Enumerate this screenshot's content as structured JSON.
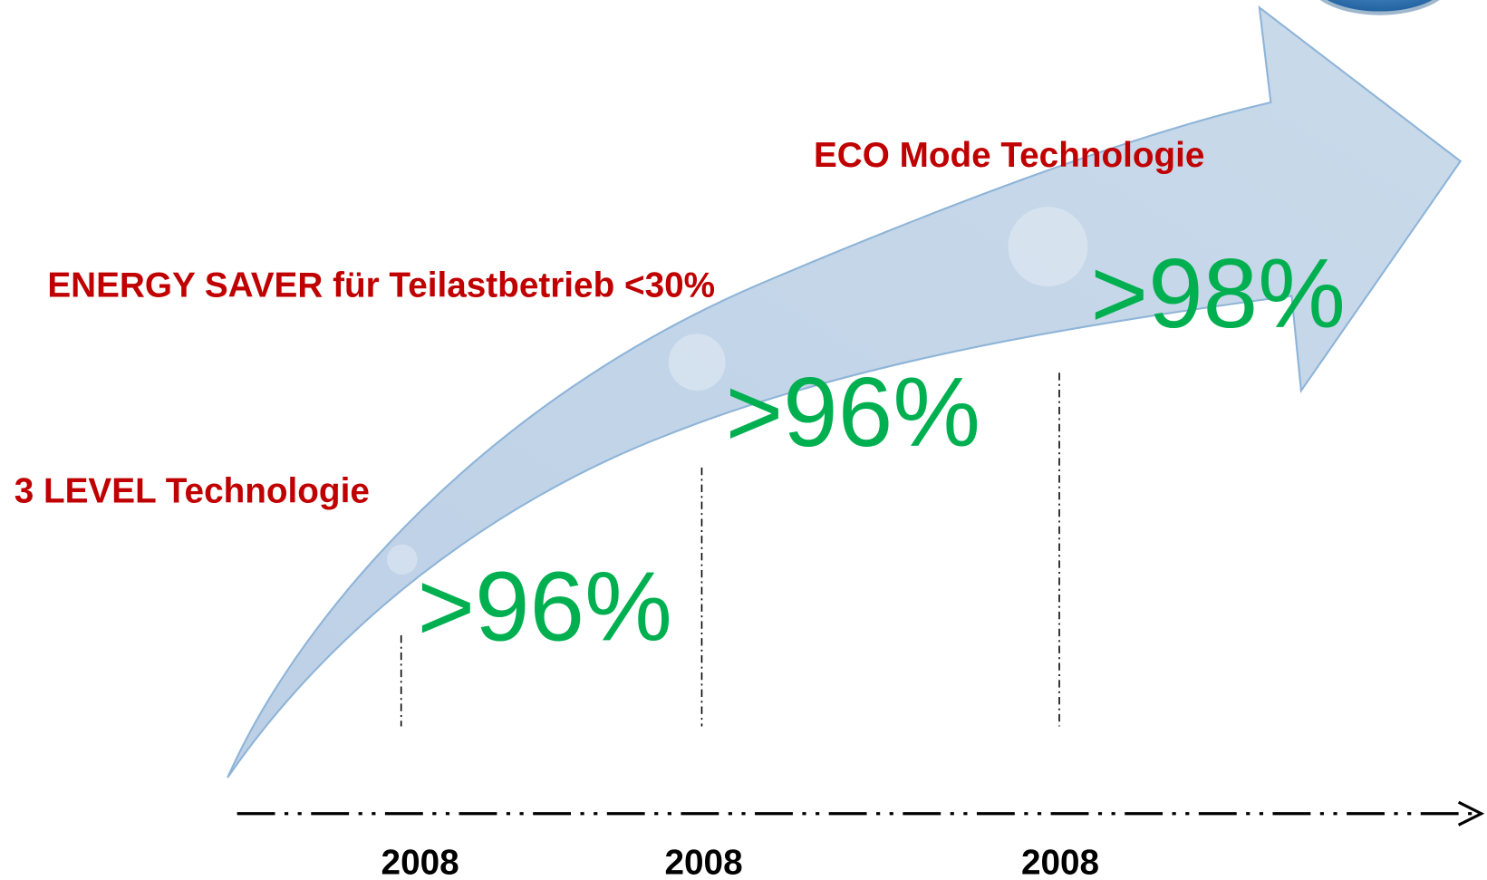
{
  "milestones": [
    {
      "label": "3 LEVEL Technologie",
      "efficiency": ">96%",
      "year": "2008"
    },
    {
      "label": "ENERGY SAVER für Teilastbetrieb <30%",
      "efficiency": ">96%",
      "year": "2008"
    },
    {
      "label": "ECO Mode Technologie",
      "efficiency": ">98%",
      "year": "2008"
    }
  ]
}
